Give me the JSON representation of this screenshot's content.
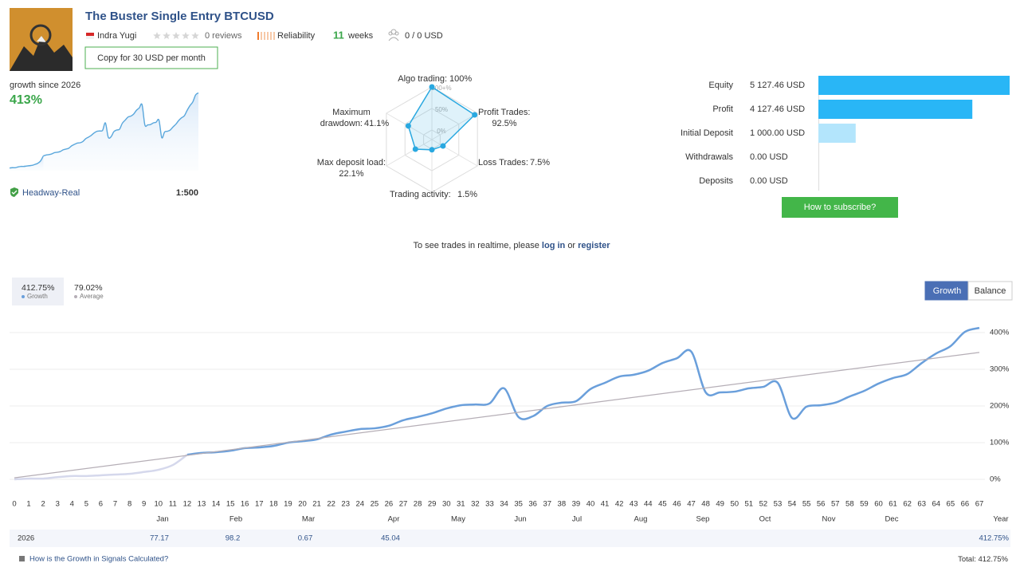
{
  "header": {
    "title": "The Buster Single Entry BTCUSD",
    "author": "Indra Yugi",
    "reviews": "0 reviews",
    "reliability": "Reliability",
    "weeks": "11",
    "weeks_unit": "weeks",
    "subscribers": "0 / 0 USD",
    "copy_button": "Copy for 30 USD per month"
  },
  "summary": {
    "growth_label": "growth since 2026",
    "growth_value": "413%",
    "broker": "Headway-Real",
    "leverage": "1:500"
  },
  "radar": {
    "type": "radar",
    "categories": [
      "Algo trading:",
      "Profit Trades:",
      "Loss Trades:",
      "Trading activity:",
      "Max deposit load:",
      "Maximum drawdown:"
    ],
    "values": [
      100,
      92.5,
      7.5,
      1.5,
      22.1,
      41.1
    ],
    "value_labels": [
      "100%",
      "92.5%",
      "7.5%",
      "1.5%",
      "22.1%",
      "41.1%"
    ],
    "rlim": [
      0,
      100
    ],
    "rticks": [
      {
        "value": 0,
        "label": "0%"
      },
      {
        "value": 50,
        "label": "50%"
      },
      {
        "value": 100,
        "label": "100+%"
      }
    ],
    "color": "#29a8e0"
  },
  "account": {
    "type": "bar",
    "orientation": "horizontal",
    "categories": [
      "Equity",
      "Profit",
      "Initial Deposit",
      "Withdrawals",
      "Deposits"
    ],
    "values": [
      5127.46,
      4127.46,
      1000,
      0,
      0
    ],
    "value_labels": [
      "5 127.46 USD",
      "4 127.46 USD",
      "1 000.00 USD",
      "0.00 USD",
      "0.00 USD"
    ],
    "colors": [
      "#29b6f6",
      "#29b6f6",
      "#b3e5fc",
      "#b3e5fc",
      "#b3e5fc"
    ]
  },
  "subscribe_button": "How to subscribe?",
  "notice": {
    "text": "To see trades in realtime, please",
    "login": "log in",
    "or": "or",
    "register": "register"
  },
  "main_chart": {
    "type": "line",
    "x": [
      0,
      1,
      2,
      3,
      4,
      5,
      6,
      7,
      8,
      9,
      10,
      11,
      12,
      13,
      14,
      15,
      16,
      17,
      18,
      19,
      20,
      21,
      22,
      23,
      24,
      25,
      26,
      27,
      28,
      29,
      30,
      31,
      32,
      33,
      34,
      35,
      36,
      37,
      38,
      39,
      40,
      41,
      42,
      43,
      44,
      45,
      46,
      47,
      48,
      49,
      50,
      51,
      52,
      53,
      54,
      55,
      56,
      57,
      58,
      59,
      60,
      61,
      62,
      63,
      64,
      65,
      66,
      67
    ],
    "series": [
      {
        "name": "Growth",
        "legend_value": "412.75%",
        "color": "#6a9fdb",
        "values": [
          null,
          null,
          null,
          null,
          null,
          null,
          null,
          null,
          null,
          null,
          null,
          null,
          67,
          72,
          74,
          78,
          85,
          87,
          91,
          100,
          104,
          109,
          122,
          130,
          137,
          139,
          146,
          161,
          170,
          180,
          193,
          202,
          204,
          207,
          248,
          170,
          172,
          200,
          209,
          213,
          246,
          263,
          280,
          285,
          296,
          317,
          330,
          348,
          237,
          237,
          239,
          248,
          252,
          263,
          167,
          198,
          202,
          209,
          226,
          241,
          261,
          276,
          287,
          317,
          343,
          363,
          402,
          412.75
        ]
      },
      {
        "color": "#d5d8ec",
        "values": [
          0,
          2,
          2,
          6,
          9,
          9,
          11,
          13,
          15,
          20,
          26,
          39,
          67,
          null,
          null,
          null,
          null,
          null,
          null,
          null,
          null,
          null,
          null,
          null,
          null,
          null,
          null,
          null,
          null,
          null,
          null,
          null,
          null,
          null,
          null,
          null,
          null,
          null,
          null,
          null,
          null,
          null,
          null,
          null,
          null,
          null,
          null,
          null,
          null,
          null,
          null,
          null,
          null,
          null,
          null,
          null,
          null,
          null,
          null,
          null,
          null,
          null,
          null,
          null,
          null,
          null,
          null,
          null
        ]
      },
      {
        "name": "Average",
        "legend_value": "79.02%",
        "color": "#b5aeb6",
        "x": [
          0,
          67
        ],
        "values": [
          4,
          346
        ]
      }
    ],
    "xlim": [
      0,
      67
    ],
    "xticks": [
      0,
      1,
      2,
      3,
      4,
      5,
      6,
      7,
      8,
      9,
      10,
      11,
      12,
      13,
      14,
      15,
      16,
      17,
      18,
      19,
      20,
      21,
      22,
      23,
      24,
      25,
      26,
      27,
      28,
      29,
      30,
      31,
      32,
      33,
      34,
      35,
      36,
      37,
      38,
      39,
      40,
      41,
      42,
      43,
      44,
      45,
      46,
      47,
      48,
      49,
      50,
      51,
      52,
      53,
      54,
      55,
      56,
      57,
      58,
      59,
      60,
      61,
      62,
      63,
      64,
      65,
      66,
      67
    ],
    "ylim": [
      -10,
      450
    ],
    "yticks": [
      {
        "value": 0,
        "label": "0%"
      },
      {
        "value": 100,
        "label": "100%"
      },
      {
        "value": 200,
        "label": "200%"
      },
      {
        "value": 300,
        "label": "300%"
      },
      {
        "value": 400,
        "label": "400%"
      }
    ],
    "grid": true,
    "tabs": [
      "Growth",
      "Balance"
    ],
    "active_tab": 0
  },
  "table": {
    "columns": [
      null,
      "Jan",
      "Feb",
      "Mar",
      "Apr",
      "May",
      "Jun",
      "Jul",
      "Aug",
      "Sep",
      "Oct",
      "Nov",
      "Dec",
      "Year"
    ],
    "rows": [
      [
        "2026",
        "77.17",
        "98.2",
        "0.67",
        "45.04",
        null,
        null,
        null,
        null,
        null,
        null,
        null,
        null,
        "412.75%"
      ]
    ]
  },
  "footer": {
    "link": "How is the Growth in Signals Calculated?",
    "total_label": "Total:",
    "total_value": "412.75%"
  }
}
